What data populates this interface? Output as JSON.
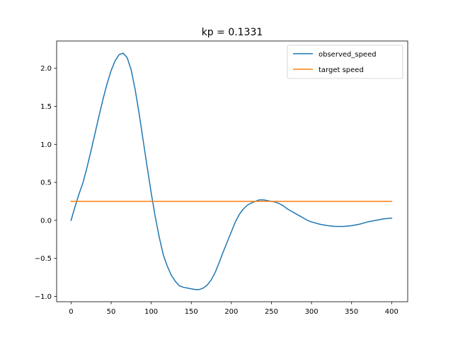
{
  "chart_data": {
    "type": "line",
    "title": "kp = 0.1331",
    "xlabel": "",
    "ylabel": "",
    "xlim": [
      -18,
      420
    ],
    "ylim": [
      -1.07,
      2.36
    ],
    "x_ticks": [
      0,
      50,
      100,
      150,
      200,
      250,
      300,
      350,
      400
    ],
    "y_ticks": [
      -1.0,
      -0.5,
      0.0,
      0.5,
      1.0,
      1.5,
      2.0
    ],
    "y_tick_labels": [
      "−1.0",
      "−0.5",
      "0.0",
      "0.5",
      "1.0",
      "1.5",
      "2.0"
    ],
    "grid": false,
    "legend_position": "upper right",
    "series": [
      {
        "name": "observed_speed",
        "color": "#1f77b4",
        "x": [
          0,
          5,
          10,
          15,
          20,
          25,
          30,
          35,
          40,
          45,
          50,
          55,
          60,
          65,
          70,
          75,
          80,
          85,
          90,
          95,
          100,
          105,
          110,
          115,
          120,
          125,
          130,
          135,
          140,
          145,
          150,
          155,
          160,
          165,
          170,
          175,
          180,
          185,
          190,
          195,
          200,
          205,
          210,
          215,
          220,
          225,
          230,
          235,
          240,
          245,
          250,
          255,
          260,
          265,
          270,
          275,
          280,
          285,
          290,
          295,
          300,
          310,
          320,
          330,
          340,
          350,
          360,
          370,
          380,
          390,
          400
        ],
        "y": [
          0.0,
          0.18,
          0.35,
          0.5,
          0.7,
          0.92,
          1.15,
          1.38,
          1.6,
          1.8,
          1.97,
          2.1,
          2.18,
          2.2,
          2.14,
          1.98,
          1.72,
          1.4,
          1.05,
          0.7,
          0.36,
          0.05,
          -0.22,
          -0.45,
          -0.6,
          -0.72,
          -0.8,
          -0.86,
          -0.88,
          -0.89,
          -0.9,
          -0.91,
          -0.91,
          -0.89,
          -0.85,
          -0.78,
          -0.68,
          -0.55,
          -0.41,
          -0.28,
          -0.15,
          -0.02,
          0.08,
          0.15,
          0.2,
          0.23,
          0.25,
          0.27,
          0.27,
          0.26,
          0.25,
          0.24,
          0.22,
          0.19,
          0.15,
          0.12,
          0.09,
          0.06,
          0.03,
          0.0,
          -0.02,
          -0.05,
          -0.07,
          -0.08,
          -0.08,
          -0.07,
          -0.05,
          -0.02,
          0.0,
          0.02,
          0.03
        ]
      },
      {
        "name": "target speed",
        "color": "#ff7f0e",
        "x": [
          0,
          400
        ],
        "y": [
          0.25,
          0.25
        ]
      }
    ]
  }
}
